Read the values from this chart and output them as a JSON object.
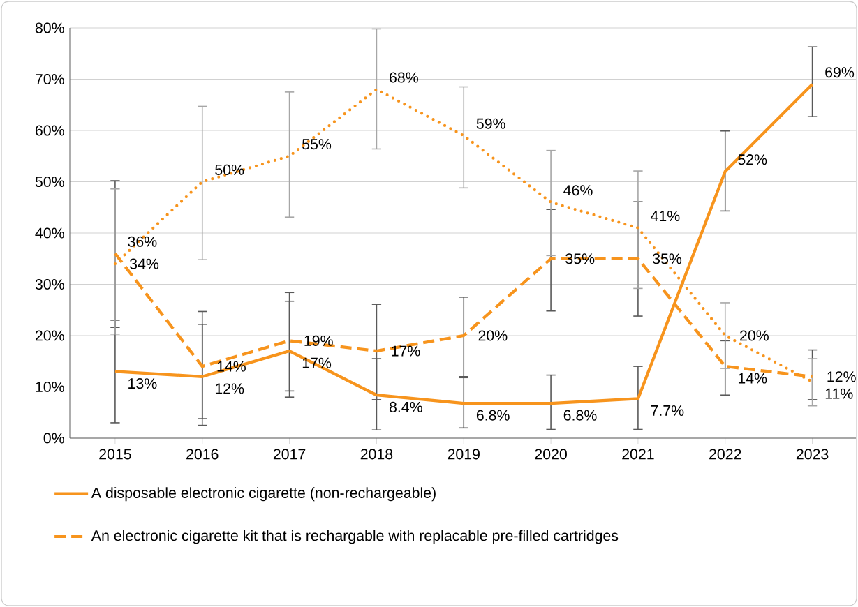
{
  "chart_data": {
    "type": "line",
    "categories": [
      "2015",
      "2016",
      "2017",
      "2018",
      "2019",
      "2020",
      "2021",
      "2022",
      "2023"
    ],
    "series": [
      {
        "name": "A disposable electronic cigarette (non-rechargeable)",
        "color": "#f7941d",
        "line_style": "solid",
        "values": [
          13,
          12,
          17,
          8.4,
          6.8,
          6.8,
          7.7,
          52,
          69
        ],
        "value_labels": [
          "13%",
          "12%",
          "17%",
          "8.4%",
          "6.8%",
          "6.8%",
          "7.7%",
          "52%",
          "69%"
        ],
        "errors": [
          [
            3,
            23
          ],
          [
            2.5,
            22.2
          ],
          [
            8,
            26.7
          ],
          [
            1.6,
            15.5
          ],
          [
            2,
            11.8
          ],
          [
            1.7,
            12.3
          ],
          [
            1.7,
            14
          ],
          [
            44.3,
            59.9
          ],
          [
            62.7,
            76.3
          ]
        ]
      },
      {
        "name": "An electronic cigarette kit that is rechargable with replacable pre-filled cartridges",
        "color": "#f7941d",
        "line_style": "dashed",
        "values": [
          36,
          14,
          19,
          17,
          20,
          35,
          35,
          14,
          12
        ],
        "value_labels": [
          "36%",
          "14%",
          "19%",
          "17%",
          "20%",
          "35%",
          "35%",
          "14%",
          "12%"
        ],
        "errors": [
          [
            21.6,
            50.2
          ],
          [
            3.8,
            24.7
          ],
          [
            9.2,
            28.4
          ],
          [
            7.5,
            26.1
          ],
          [
            12,
            27.5
          ],
          [
            24.8,
            44.6
          ],
          [
            23.8,
            46.1
          ],
          [
            8.4,
            19
          ],
          [
            7.5,
            17.2
          ]
        ]
      },
      {
        "color": "#f7941d",
        "line_style": "dotted",
        "values": [
          34,
          50,
          55,
          68,
          59,
          46,
          41,
          20,
          11
        ],
        "value_labels": [
          "34%",
          "50%",
          "55%",
          "68%",
          "59%",
          "46%",
          "41%",
          "20%",
          "11%"
        ],
        "errors": [
          [
            20.3,
            48.6
          ],
          [
            34.8,
            64.7
          ],
          [
            43.1,
            67.5
          ],
          [
            56.4,
            79.8
          ],
          [
            48.8,
            68.5
          ],
          [
            35.6,
            56.1
          ],
          [
            29.2,
            52.1
          ],
          [
            13.6,
            26.4
          ],
          [
            6.3,
            15.5
          ]
        ]
      }
    ],
    "ylim": [
      0,
      80
    ],
    "yticks": [
      {
        "value": 0,
        "label": "0%"
      },
      {
        "value": 10,
        "label": "10%"
      },
      {
        "value": 20,
        "label": "20%"
      },
      {
        "value": 30,
        "label": "30%"
      },
      {
        "value": 40,
        "label": "40%"
      },
      {
        "value": 50,
        "label": "50%"
      },
      {
        "value": 60,
        "label": "60%"
      },
      {
        "value": 70,
        "label": "70%"
      },
      {
        "value": 80,
        "label": "80%"
      }
    ],
    "grid": "y",
    "legend": "bottom",
    "marker": "none"
  }
}
